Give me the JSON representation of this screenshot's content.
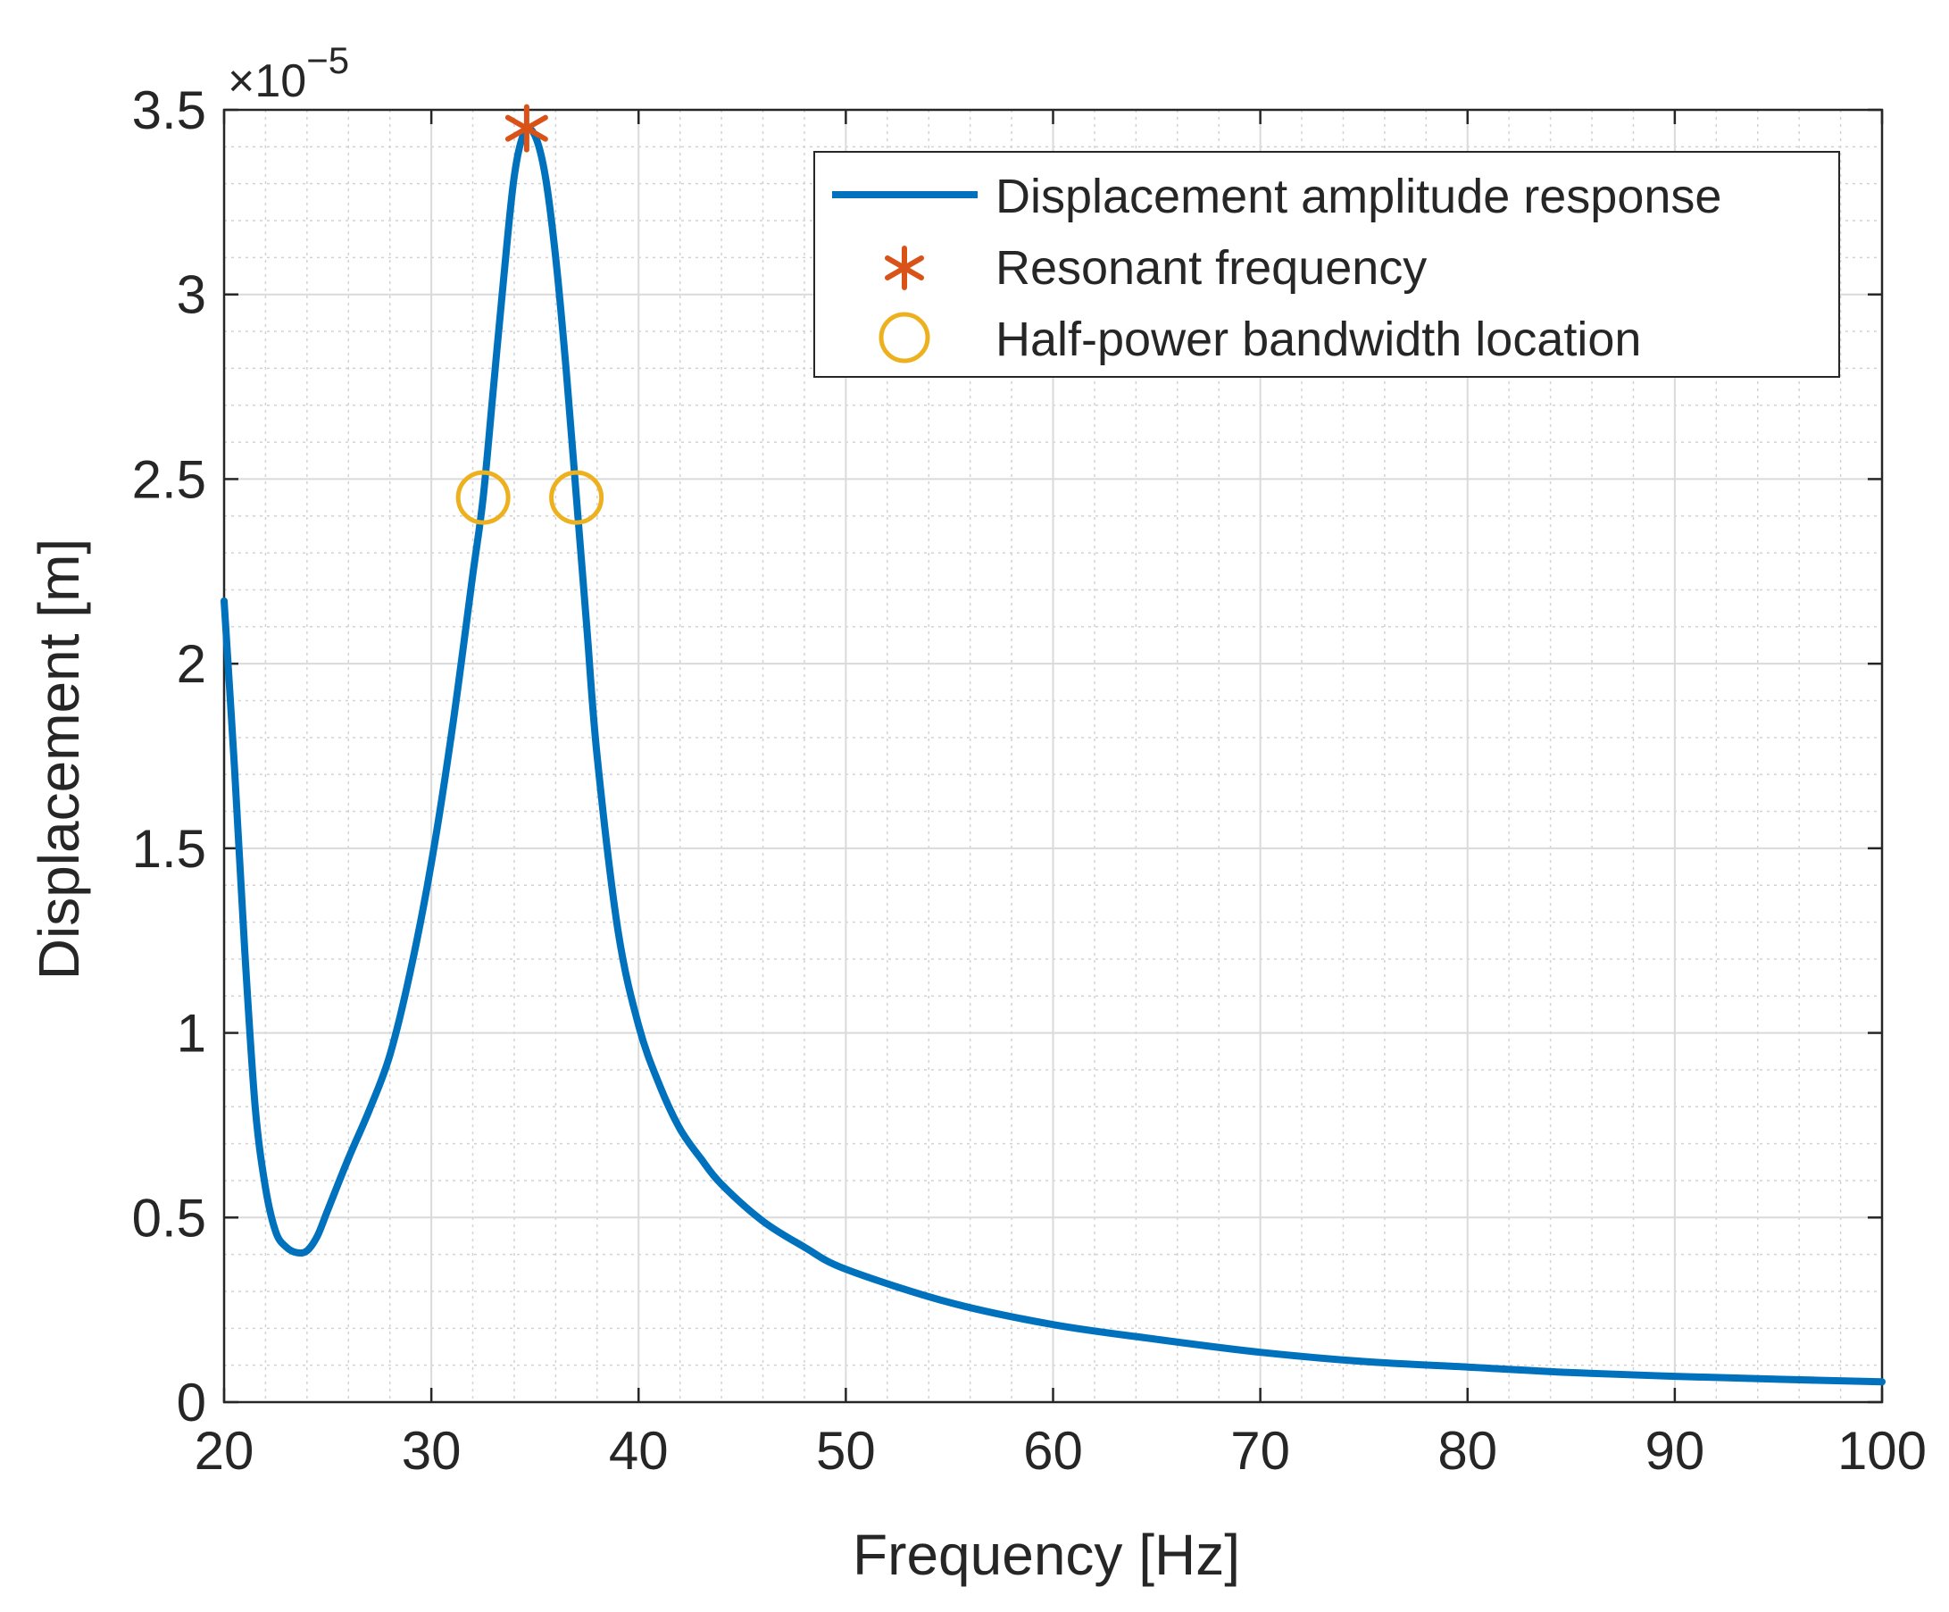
{
  "chart_data": {
    "type": "line",
    "title": "",
    "xlabel": "Frequency [Hz]",
    "ylabel": "Displacement [m]",
    "xlim": [
      20,
      100
    ],
    "ylim": [
      0,
      3.5
    ],
    "y_multiplier": {
      "base": "10",
      "exponent": "−5",
      "prefix": "×"
    },
    "x_ticks": [
      20,
      30,
      40,
      50,
      60,
      70,
      80,
      90,
      100
    ],
    "x_tick_labels": [
      "20",
      "30",
      "40",
      "50",
      "60",
      "70",
      "80",
      "90",
      "100"
    ],
    "y_ticks": [
      0,
      0.5,
      1,
      1.5,
      2,
      2.5,
      3,
      3.5
    ],
    "y_tick_labels": [
      "0",
      "0.5",
      "1",
      "1.5",
      "2",
      "2.5",
      "3",
      "3.5"
    ],
    "grid": "major and minor",
    "legend_position": "top-right",
    "series": [
      {
        "name": "Displacement amplitude response",
        "kind": "line",
        "color": "#0072BD",
        "points": [
          [
            20,
            2.17
          ],
          [
            20.5,
            1.72
          ],
          [
            21,
            1.22
          ],
          [
            21.5,
            0.8
          ],
          [
            22,
            0.58
          ],
          [
            22.5,
            0.46
          ],
          [
            23,
            0.42
          ],
          [
            23.5,
            0.405
          ],
          [
            24,
            0.41
          ],
          [
            24.5,
            0.45
          ],
          [
            25,
            0.52
          ],
          [
            26,
            0.66
          ],
          [
            27,
            0.79
          ],
          [
            28,
            0.94
          ],
          [
            29,
            1.17
          ],
          [
            30,
            1.46
          ],
          [
            31,
            1.82
          ],
          [
            32,
            2.24
          ],
          [
            32.5,
            2.45
          ],
          [
            33,
            2.75
          ],
          [
            33.5,
            3.05
          ],
          [
            34,
            3.32
          ],
          [
            34.5,
            3.44
          ],
          [
            35,
            3.43
          ],
          [
            35.5,
            3.32
          ],
          [
            36,
            3.1
          ],
          [
            36.5,
            2.8
          ],
          [
            37,
            2.45
          ],
          [
            37.5,
            2.1
          ],
          [
            38,
            1.75
          ],
          [
            39,
            1.28
          ],
          [
            40,
            1.02
          ],
          [
            41,
            0.86
          ],
          [
            42,
            0.74
          ],
          [
            43,
            0.66
          ],
          [
            44,
            0.59
          ],
          [
            46,
            0.49
          ],
          [
            48,
            0.42
          ],
          [
            50,
            0.36
          ],
          [
            55,
            0.27
          ],
          [
            60,
            0.21
          ],
          [
            65,
            0.17
          ],
          [
            70,
            0.135
          ],
          [
            75,
            0.11
          ],
          [
            80,
            0.095
          ],
          [
            85,
            0.08
          ],
          [
            90,
            0.07
          ],
          [
            95,
            0.062
          ],
          [
            100,
            0.055
          ]
        ]
      },
      {
        "name": "Resonant frequency",
        "kind": "marker",
        "marker": "asterisk",
        "color": "#D95319",
        "points": [
          [
            34.6,
            3.45
          ]
        ]
      },
      {
        "name": "Half-power bandwidth location",
        "kind": "marker",
        "marker": "circle",
        "color": "#EDB120",
        "points": [
          [
            32.5,
            2.45
          ],
          [
            37,
            2.45
          ]
        ]
      }
    ]
  }
}
